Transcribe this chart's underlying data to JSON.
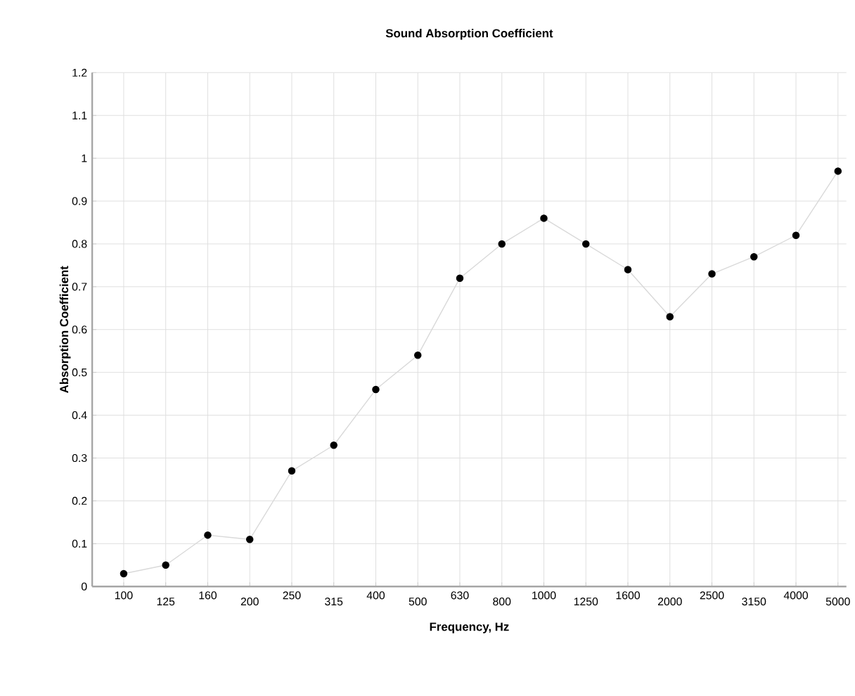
{
  "chart_data": {
    "type": "line",
    "title": "Sound Absorption Coefficient",
    "xlabel": "Frequency, Hz",
    "ylabel": "Absorption Coefficient",
    "categories": [
      "100",
      "125",
      "160",
      "200",
      "250",
      "315",
      "400",
      "500",
      "630",
      "800",
      "1000",
      "1250",
      "1600",
      "2000",
      "2500",
      "3150",
      "4000",
      "5000"
    ],
    "series": [
      {
        "color": "#000000",
        "values": [
          0.03,
          0.05,
          0.12,
          0.11,
          0.27,
          0.33,
          0.46,
          0.54,
          0.72,
          0.8,
          0.86,
          0.8,
          0.74,
          0.63,
          0.73,
          0.77,
          0.82,
          0.97
        ]
      }
    ],
    "ylim": [
      0,
      1.2
    ],
    "yticks": [
      0,
      0.1,
      0.2,
      0.3,
      0.4,
      0.5,
      0.6,
      0.7,
      0.8,
      0.9,
      1,
      1.1,
      1.2
    ],
    "grid": true,
    "marker": "circle",
    "line_style": "solid"
  }
}
